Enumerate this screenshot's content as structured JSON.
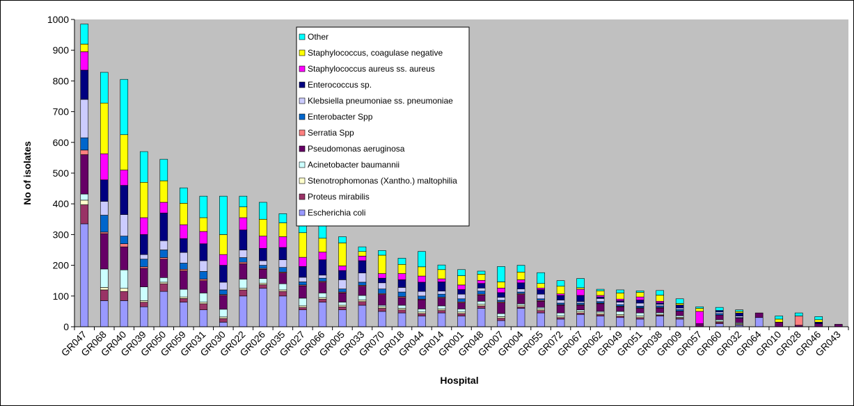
{
  "chart_data": {
    "type": "bar",
    "stacked": true,
    "xlabel": "Hospital",
    "ylabel": "No of isolates",
    "ylim": [
      0,
      1000
    ],
    "yticks": [
      0,
      100,
      200,
      300,
      400,
      500,
      600,
      700,
      800,
      900,
      1000
    ],
    "grid": false,
    "plot_background": "#c0c0c0",
    "legend_position": "top-center",
    "categories": [
      "GR047",
      "GR068",
      "GR040",
      "GR039",
      "GR050",
      "GR059",
      "GR031",
      "GR030",
      "GR022",
      "GR026",
      "GR035",
      "GR027",
      "GR066",
      "GR005",
      "GR033",
      "GR070",
      "GR018",
      "GR044",
      "GR014",
      "GR001",
      "GR048",
      "GR007",
      "GR004",
      "GR055",
      "GR072",
      "GR067",
      "GR062",
      "GR049",
      "GR051",
      "GR038",
      "GR009",
      "GR057",
      "GR060",
      "GR032",
      "GR064",
      "GR010",
      "GR028",
      "GR046",
      "GR043"
    ],
    "series": [
      {
        "name": "Escherichia coli",
        "color": "#9999ff",
        "values": [
          335,
          85,
          85,
          65,
          115,
          80,
          55,
          15,
          100,
          125,
          100,
          55,
          80,
          55,
          70,
          50,
          45,
          35,
          45,
          35,
          60,
          20,
          60,
          45,
          25,
          40,
          35,
          30,
          25,
          35,
          25,
          0,
          10,
          5,
          30,
          0,
          0,
          0,
          0
        ]
      },
      {
        "name": "Proteus mirabilis",
        "color": "#993366",
        "values": [
          62,
          35,
          30,
          15,
          25,
          12,
          20,
          12,
          20,
          12,
          15,
          8,
          10,
          10,
          12,
          10,
          10,
          8,
          8,
          8,
          8,
          8,
          5,
          8,
          5,
          5,
          5,
          5,
          5,
          3,
          3,
          0,
          5,
          2,
          0,
          0,
          0,
          0,
          0
        ]
      },
      {
        "name": "Stenotrophomonas (Xantho.) maltophilia",
        "color": "#ffffcc",
        "values": [
          15,
          8,
          10,
          5,
          5,
          5,
          5,
          5,
          5,
          5,
          5,
          5,
          5,
          5,
          5,
          5,
          5,
          5,
          5,
          5,
          5,
          5,
          5,
          5,
          5,
          5,
          5,
          5,
          5,
          3,
          3,
          0,
          3,
          3,
          0,
          0,
          0,
          0,
          0
        ]
      },
      {
        "name": "Acinetobacter baumannii",
        "color": "#ccffff",
        "values": [
          20,
          60,
          60,
          45,
          15,
          25,
          30,
          25,
          30,
          15,
          20,
          25,
          15,
          10,
          15,
          5,
          10,
          10,
          10,
          10,
          10,
          10,
          5,
          5,
          10,
          5,
          5,
          10,
          10,
          5,
          5,
          0,
          5,
          3,
          0,
          0,
          0,
          0,
          0
        ]
      },
      {
        "name": "Pseudomonas aeruginosa",
        "color": "#660066",
        "values": [
          128,
          115,
          75,
          60,
          60,
          60,
          40,
          45,
          50,
          30,
          35,
          40,
          35,
          30,
          30,
          35,
          25,
          30,
          25,
          20,
          20,
          35,
          30,
          20,
          25,
          15,
          25,
          15,
          15,
          15,
          15,
          10,
          15,
          15,
          15,
          15,
          5,
          10,
          8
        ]
      },
      {
        "name": "Serratia Spp",
        "color": "#ff8080",
        "values": [
          15,
          5,
          10,
          5,
          5,
          5,
          5,
          3,
          5,
          3,
          3,
          3,
          3,
          3,
          3,
          3,
          3,
          2,
          3,
          3,
          3,
          3,
          3,
          3,
          2,
          2,
          2,
          2,
          2,
          2,
          0,
          0,
          0,
          0,
          0,
          0,
          30,
          0,
          0
        ]
      },
      {
        "name": "Enterobacter Spp",
        "color": "#0066cc",
        "values": [
          40,
          55,
          25,
          25,
          25,
          20,
          25,
          15,
          15,
          10,
          15,
          10,
          10,
          10,
          10,
          15,
          15,
          10,
          10,
          10,
          10,
          5,
          5,
          5,
          5,
          5,
          5,
          5,
          5,
          5,
          5,
          0,
          5,
          2,
          0,
          0,
          0,
          0,
          0
        ]
      },
      {
        "name": "Klebsiella pneumoniae ss. pneumoniae",
        "color": "#ccccff",
        "values": [
          125,
          45,
          70,
          15,
          30,
          35,
          35,
          25,
          25,
          15,
          25,
          15,
          10,
          30,
          30,
          20,
          15,
          15,
          10,
          15,
          10,
          10,
          10,
          15,
          10,
          5,
          10,
          8,
          10,
          5,
          5,
          0,
          5,
          5,
          0,
          0,
          0,
          0,
          0
        ]
      },
      {
        "name": "Enterococcus sp.",
        "color": "#000080",
        "values": [
          95,
          70,
          95,
          65,
          90,
          45,
          55,
          55,
          65,
          40,
          40,
          35,
          50,
          30,
          40,
          15,
          25,
          30,
          30,
          15,
          15,
          15,
          20,
          15,
          15,
          20,
          5,
          5,
          10,
          5,
          10,
          0,
          5,
          10,
          0,
          0,
          0,
          5,
          0
        ]
      },
      {
        "name": "Staphylococcus aureus ss. aureus",
        "color": "#ff00ff",
        "values": [
          60,
          85,
          50,
          55,
          35,
          45,
          40,
          35,
          40,
          40,
          35,
          30,
          25,
          15,
          15,
          15,
          20,
          20,
          10,
          15,
          10,
          15,
          10,
          5,
          5,
          20,
          5,
          5,
          10,
          5,
          0,
          40,
          0,
          0,
          0,
          0,
          0,
          0,
          0
        ]
      },
      {
        "name": "Staphylococcus, coagulase negative",
        "color": "#ffff00",
        "values": [
          25,
          165,
          115,
          115,
          70,
          70,
          45,
          65,
          35,
          55,
          45,
          80,
          45,
          75,
          15,
          60,
          30,
          30,
          30,
          30,
          20,
          20,
          25,
          15,
          25,
          5,
          15,
          20,
          15,
          20,
          5,
          10,
          0,
          5,
          0,
          10,
          0,
          8,
          0
        ]
      },
      {
        "name": "Other",
        "color": "#00ffff",
        "values": [
          65,
          100,
          180,
          100,
          70,
          50,
          70,
          125,
          35,
          55,
          30,
          50,
          45,
          20,
          15,
          15,
          20,
          50,
          15,
          20,
          10,
          50,
          22,
          35,
          18,
          30,
          5,
          10,
          5,
          15,
          15,
          5,
          10,
          5,
          0,
          10,
          10,
          10,
          0
        ]
      }
    ]
  }
}
